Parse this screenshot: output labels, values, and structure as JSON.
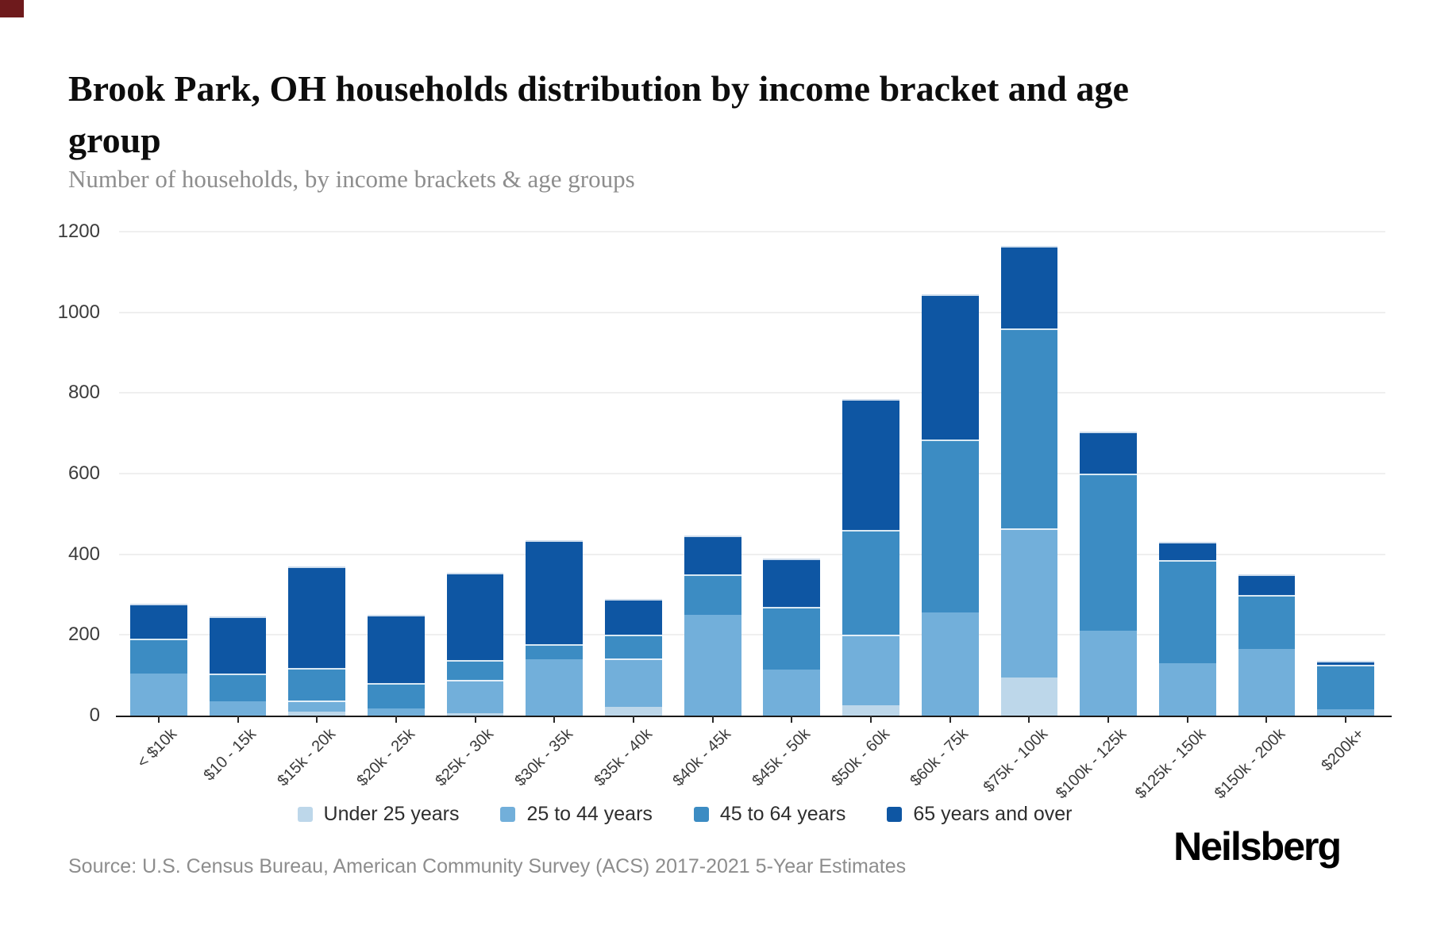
{
  "page": {
    "title": "Brook Park, OH households distribution by income bracket and age group",
    "subtitle": "Number of households, by income brackets & age groups",
    "source": "Source: U.S. Census Bureau, American Community Survey (ACS) 2017-2021 5-Year Estimates",
    "brand": "Neilsberg"
  },
  "chart_data": {
    "type": "bar",
    "stacked": true,
    "title": "Brook Park, OH households distribution by income bracket and age group",
    "subtitle": "Number of households, by income brackets & age groups",
    "xlabel": "",
    "ylabel": "Number of households",
    "ylim": [
      0,
      1200
    ],
    "yticks": [
      0,
      200,
      400,
      600,
      800,
      1000,
      1200
    ],
    "grid": true,
    "legend_position": "bottom",
    "categories": [
      "< $10k",
      "$10 - 15k",
      "$15k - 20k",
      "$20k - 25k",
      "$25k - 30k",
      "$30k - 35k",
      "$35k - 40k",
      "$40k - 45k",
      "$45k - 50k",
      "$50k - 60k",
      "$60k - 75k",
      "$75k - 100k",
      "$100k - 125k",
      "$125k - 150k",
      "$150k - 200k",
      "$200k+"
    ],
    "series": [
      {
        "name": "Under 25 years",
        "color": "#bdd7ea",
        "values": [
          0,
          0,
          10,
          0,
          5,
          0,
          22,
          0,
          0,
          25,
          0,
          95,
          0,
          0,
          0,
          0
        ]
      },
      {
        "name": "25 to 44 years",
        "color": "#72afda",
        "values": [
          105,
          35,
          28,
          18,
          84,
          140,
          120,
          250,
          115,
          175,
          255,
          370,
          210,
          130,
          165,
          15
        ]
      },
      {
        "name": "45 to 64 years",
        "color": "#3c8cc3",
        "values": [
          85,
          70,
          80,
          62,
          48,
          38,
          58,
          100,
          155,
          260,
          430,
          495,
          390,
          255,
          135,
          110
        ]
      },
      {
        "name": "65 years and over",
        "color": "#0e56a3",
        "values": [
          88,
          140,
          252,
          170,
          218,
          257,
          90,
          97,
          120,
          325,
          360,
          205,
          105,
          45,
          50,
          10
        ]
      }
    ],
    "totals": [
      278,
      245,
      370,
      250,
      355,
      435,
      290,
      447,
      390,
      785,
      1045,
      1165,
      705,
      430,
      350,
      135
    ]
  }
}
